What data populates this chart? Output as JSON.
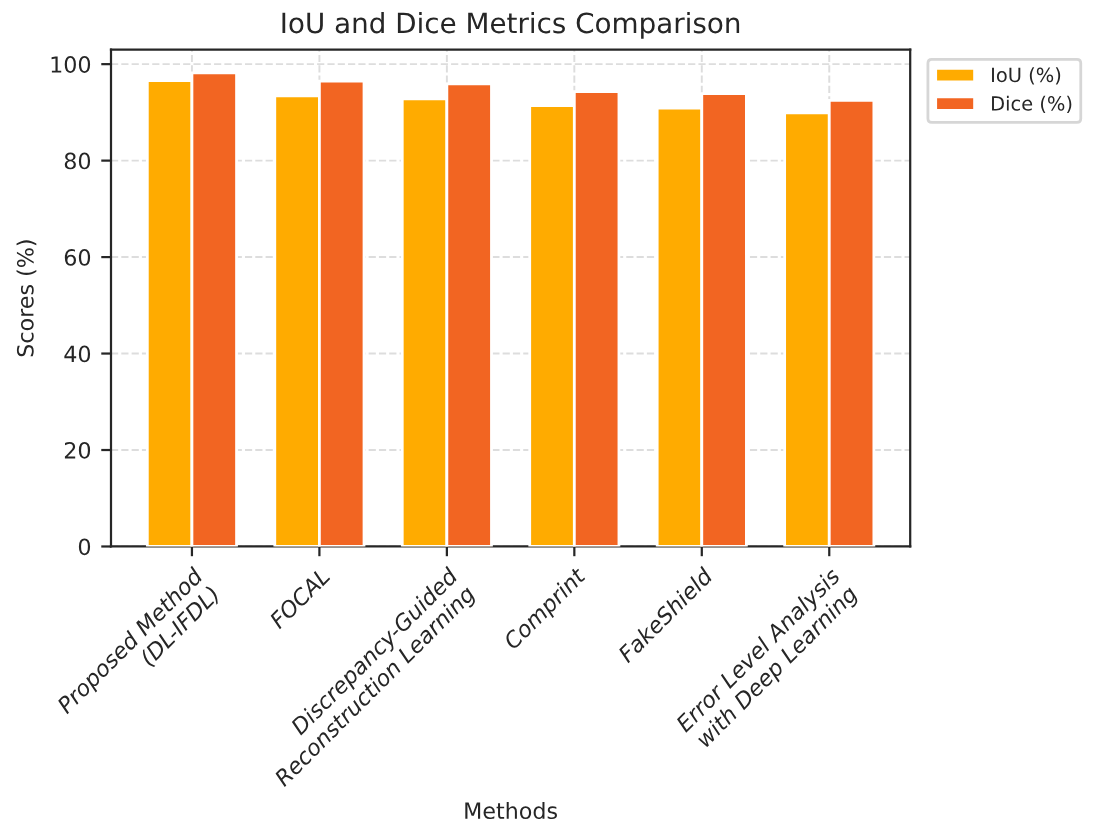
{
  "chart_data": {
    "type": "bar",
    "title": "IoU and Dice Metrics Comparison",
    "xlabel": "Methods",
    "ylabel": "Scores (%)",
    "categories": [
      "Proposed Method\n(DL-IFDL)",
      "FOCAL",
      "Discrepancy-Guided\nReconstruction Learning",
      "Comprint",
      "FakeShield",
      "Error Level Analysis\nwith Deep Learning"
    ],
    "series": [
      {
        "name": "IoU (%)",
        "color": "#ffab00",
        "values": [
          96.6,
          93.4,
          92.8,
          91.4,
          90.9,
          89.9
        ]
      },
      {
        "name": "Dice (%)",
        "color": "#f26522",
        "values": [
          98.2,
          96.5,
          95.9,
          94.3,
          93.9,
          92.5
        ]
      }
    ],
    "ylim": [
      0,
      103
    ],
    "yticks": [
      0,
      20,
      40,
      60,
      80,
      100
    ],
    "grid": true,
    "legend": "top right"
  }
}
